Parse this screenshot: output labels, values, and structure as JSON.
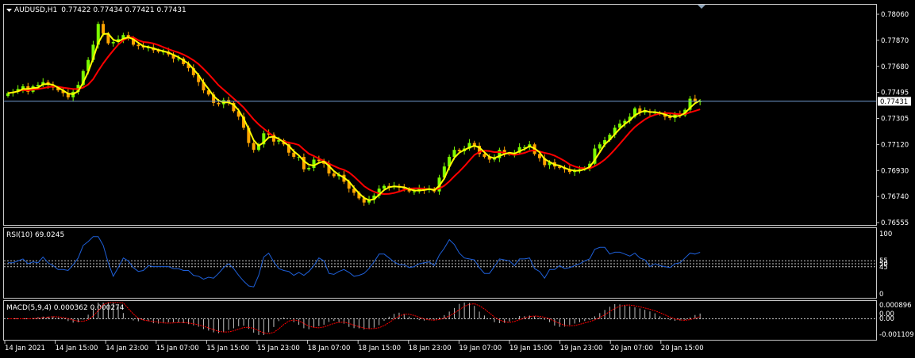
{
  "chart_data": [
    {
      "type": "candlestick",
      "title": "AUDUSD,H1",
      "ohlc_header": "0.77422 0.77434 0.77421 0.77431",
      "price_label": "0.77431",
      "current_price": 0.77431,
      "ylim": [
        0.7764,
        0.7808
      ],
      "y_ticks": [
        "0.78060",
        "0.77870",
        "0.77680",
        "0.77495",
        "0.77305",
        "0.77120",
        "0.76930",
        "0.76740",
        "0.76555"
      ],
      "x_ticks": [
        "14 Jan 2021",
        "14 Jan 15:00",
        "14 Jan 23:00",
        "15 Jan 07:00",
        "15 Jan 15:00",
        "15 Jan 23:00",
        "18 Jan 07:00",
        "18 Jan 15:00",
        "18 Jan 23:00",
        "19 Jan 07:00",
        "19 Jan 15:00",
        "19 Jan 23:00",
        "20 Jan 07:00",
        "20 Jan 15:00"
      ],
      "bull_color": "#7cfc00",
      "bear_color": "#ffa500",
      "close": [
        0.7749,
        0.775,
        0.7752,
        0.7754,
        0.775,
        0.7754,
        0.7755,
        0.7757,
        0.7755,
        0.7753,
        0.7751,
        0.7749,
        0.7746,
        0.775,
        0.7755,
        0.7765,
        0.7773,
        0.7784,
        0.7799,
        0.7792,
        0.7785,
        0.7786,
        0.7788,
        0.7791,
        0.7789,
        0.7784,
        0.7783,
        0.7782,
        0.7782,
        0.778,
        0.7779,
        0.7779,
        0.7777,
        0.7774,
        0.7774,
        0.777,
        0.7767,
        0.7762,
        0.7757,
        0.7751,
        0.7748,
        0.7742,
        0.7741,
        0.7744,
        0.7742,
        0.7736,
        0.7732,
        0.7724,
        0.7713,
        0.7708,
        0.7712,
        0.772,
        0.7719,
        0.7714,
        0.7715,
        0.7712,
        0.7706,
        0.7703,
        0.7703,
        0.7694,
        0.7695,
        0.7701,
        0.77,
        0.7698,
        0.7691,
        0.7689,
        0.769,
        0.7685,
        0.768,
        0.7677,
        0.7673,
        0.767,
        0.7672,
        0.7675,
        0.768,
        0.7682,
        0.7681,
        0.7682,
        0.7681,
        0.768,
        0.7678,
        0.7678,
        0.768,
        0.7679,
        0.768,
        0.7678,
        0.7688,
        0.7696,
        0.7703,
        0.7708,
        0.7707,
        0.7709,
        0.7713,
        0.7711,
        0.7705,
        0.7703,
        0.7701,
        0.7702,
        0.7708,
        0.7705,
        0.7705,
        0.7706,
        0.771,
        0.771,
        0.7712,
        0.7705,
        0.7702,
        0.7697,
        0.7699,
        0.7696,
        0.7695,
        0.7694,
        0.7692,
        0.7693,
        0.7694,
        0.7695,
        0.7698,
        0.7709,
        0.7712,
        0.7715,
        0.7719,
        0.7724,
        0.7727,
        0.7729,
        0.7732,
        0.7738,
        0.7735,
        0.7736,
        0.7735,
        0.7735,
        0.7734,
        0.7732,
        0.7731,
        0.7734,
        0.7733,
        0.7737,
        0.7745,
        0.7743,
        0.77431
      ],
      "ma_fast_color": "#ffff00",
      "ma_slow_color": "#ff0000"
    },
    {
      "type": "line",
      "title": "RSI(10) 69.0245",
      "ylim": [
        0,
        100
      ],
      "y_ticks": [
        "100",
        "55",
        "50",
        "45",
        "0"
      ],
      "levels": [
        55,
        50,
        45
      ],
      "line_color": "#1e5fd8"
    },
    {
      "type": "bar",
      "title": "MACD(5,9,4) 0.000362 0.000274",
      "ylim": [
        -0.001109,
        0.000896
      ],
      "y_ticks": [
        "0.000896",
        "0.00",
        "0.00",
        "-0.001109"
      ],
      "hist_color": "#c0c0c0",
      "signal_color": "#ff0000"
    }
  ]
}
